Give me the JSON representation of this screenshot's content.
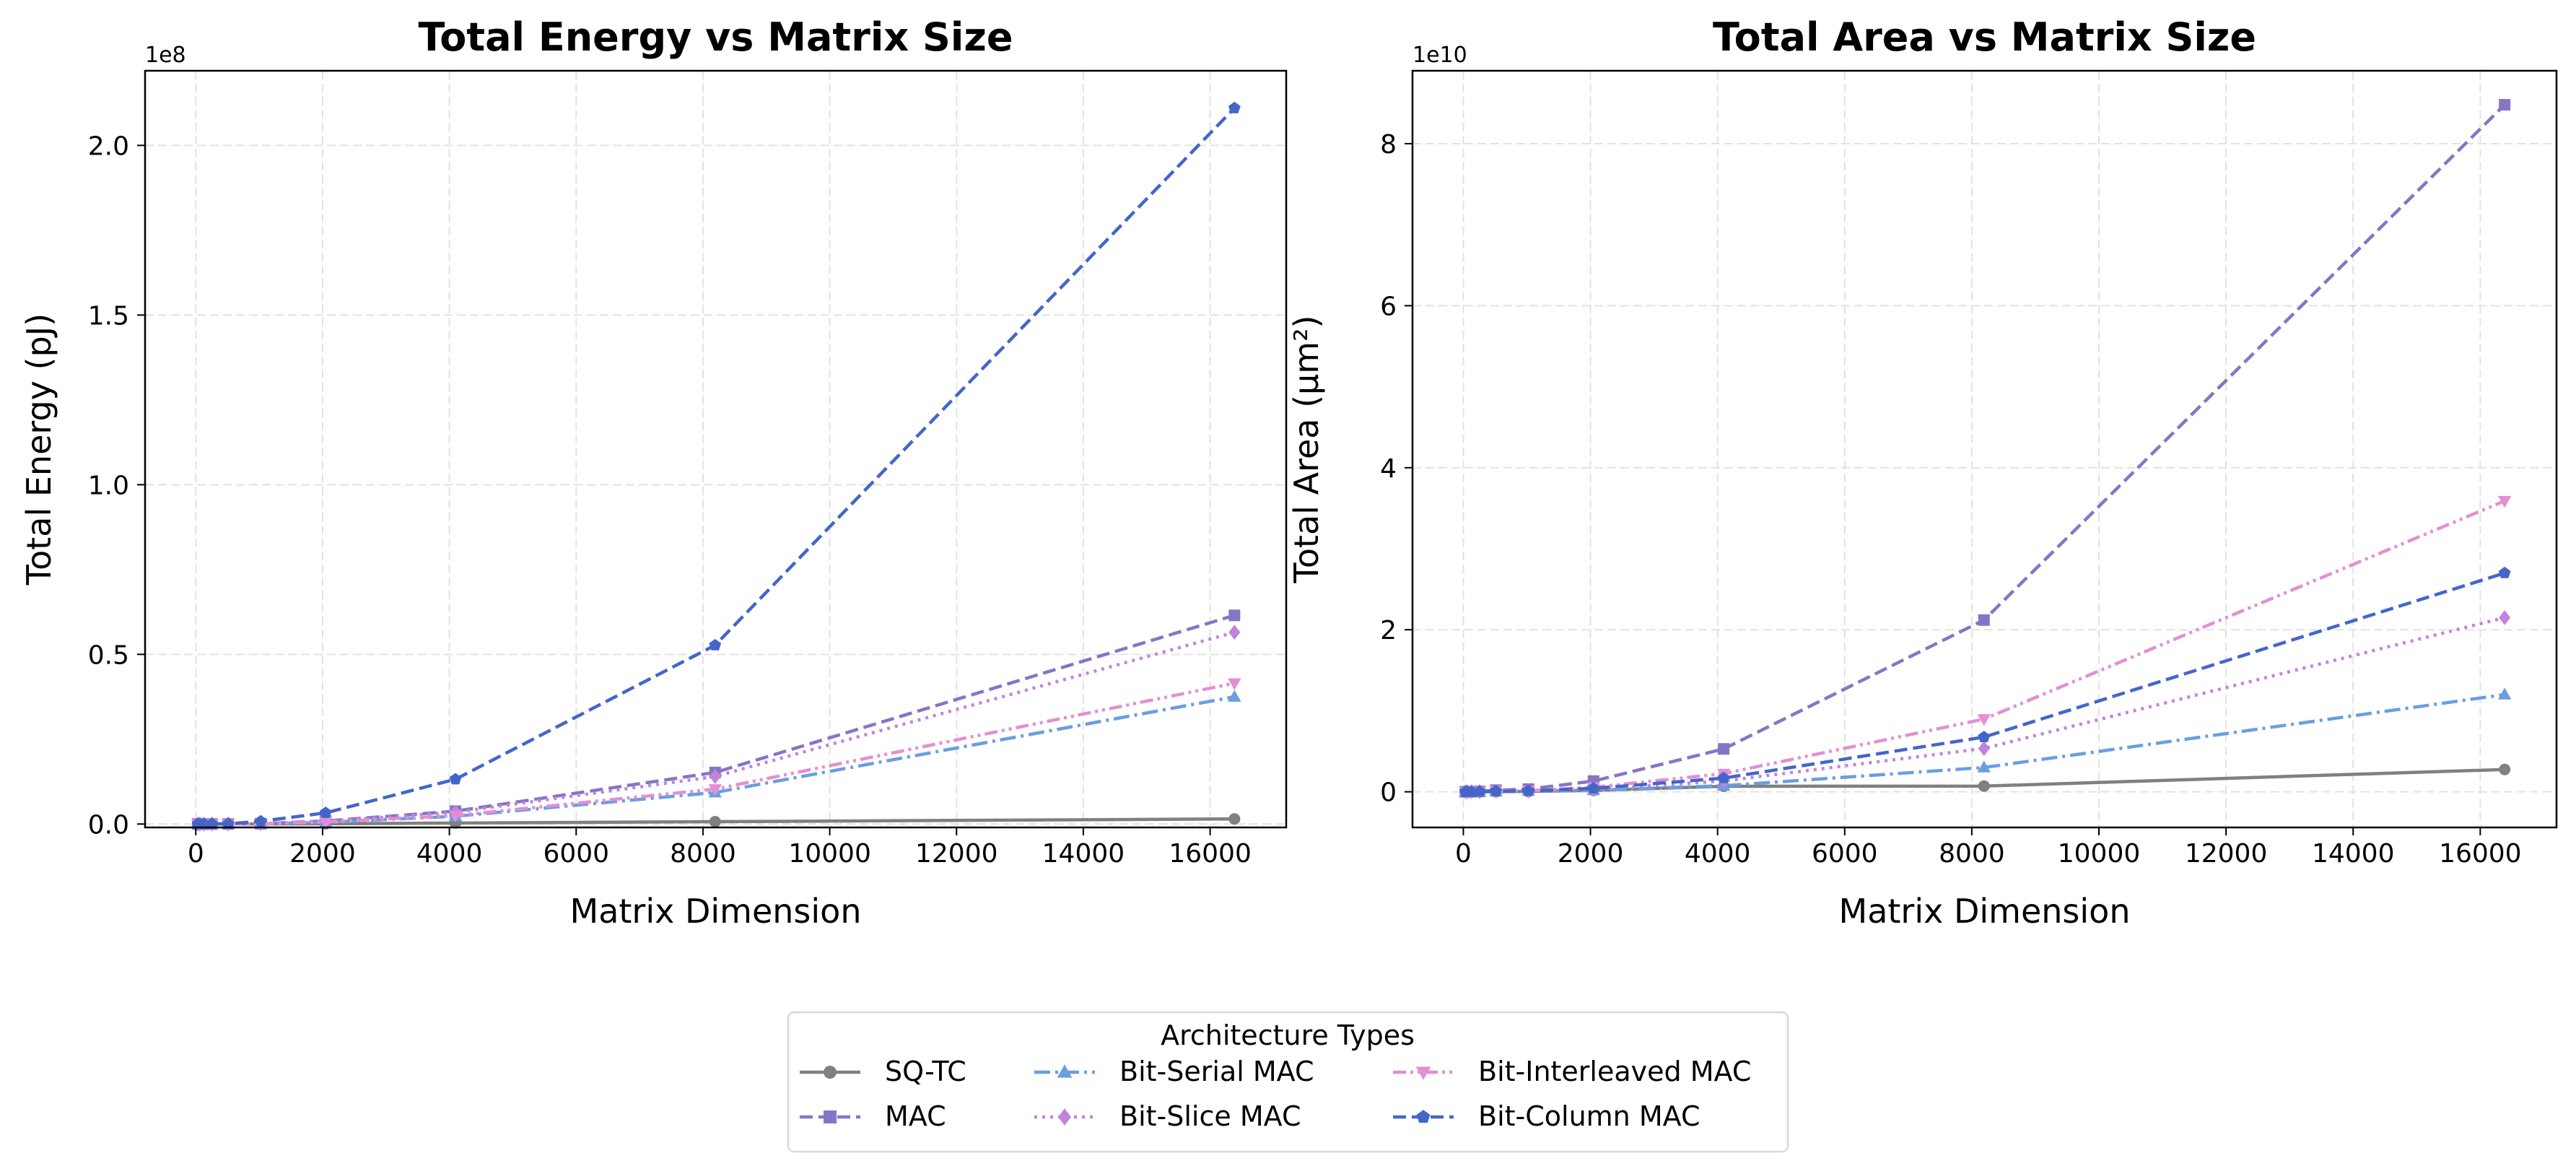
{
  "chart_data": [
    {
      "type": "line",
      "title": "Total Energy vs Matrix Size",
      "xlabel": "Matrix Dimension",
      "ylabel": "Total Energy (pJ)",
      "y_offset_label": "1e8",
      "x": [
        32,
        64,
        128,
        256,
        512,
        1024,
        2048,
        4096,
        8192,
        16384
      ],
      "xlim": [
        -800,
        17200
      ],
      "ylim": [
        -1000000,
        222000000
      ],
      "xticks": [
        0,
        2000,
        4000,
        6000,
        8000,
        10000,
        12000,
        14000,
        16000
      ],
      "xtick_labels": [
        "0",
        "2000",
        "4000",
        "6000",
        "8000",
        "10000",
        "12000",
        "14000",
        "16000"
      ],
      "yticks": [
        0,
        50000000,
        100000000,
        150000000,
        200000000
      ],
      "ytick_labels": [
        "0.0",
        "0.5",
        "1.0",
        "1.5",
        "2.0"
      ],
      "grid": true,
      "series": [
        {
          "name": "SQ-TC",
          "values": [
            0,
            0,
            0,
            1000,
            5000,
            20000,
            80000,
            300000,
            700000,
            1500000
          ]
        },
        {
          "name": "MAC",
          "values": [
            0,
            0,
            1000,
            5000,
            20000,
            100000,
            900000,
            3800000,
            15200000,
            61500000
          ]
        },
        {
          "name": "Bit-Serial MAC",
          "values": [
            0,
            0,
            1000,
            3000,
            10000,
            50000,
            500000,
            2300000,
            9300000,
            37500000
          ]
        },
        {
          "name": "Bit-Slice MAC",
          "values": [
            0,
            0,
            1000,
            4000,
            15000,
            80000,
            800000,
            3500000,
            14000000,
            56500000
          ]
        },
        {
          "name": "Bit-Interleaved MAC",
          "values": [
            0,
            0,
            1000,
            3000,
            10000,
            60000,
            600000,
            2500000,
            10300000,
            41500000
          ]
        },
        {
          "name": "Bit-Column MAC",
          "values": [
            0,
            0,
            5000,
            20000,
            80000,
            800000,
            3300000,
            13200000,
            52700000,
            211000000
          ]
        }
      ]
    },
    {
      "type": "line",
      "title": "Total Area vs Matrix Size",
      "xlabel": "Matrix Dimension",
      "ylabel": "Total Area (μm²)",
      "y_offset_label": "1e10",
      "x": [
        32,
        64,
        128,
        256,
        512,
        1024,
        2048,
        4096,
        8192,
        16384
      ],
      "xlim": [
        -800,
        17200
      ],
      "ylim": [
        -4400000000,
        89000000000
      ],
      "xticks": [
        0,
        2000,
        4000,
        6000,
        8000,
        10000,
        12000,
        14000,
        16000
      ],
      "xtick_labels": [
        "0",
        "2000",
        "4000",
        "6000",
        "8000",
        "10000",
        "12000",
        "14000",
        "16000"
      ],
      "yticks": [
        0,
        20000000000,
        40000000000,
        60000000000,
        80000000000
      ],
      "ytick_labels": [
        "0",
        "2",
        "4",
        "6",
        "8"
      ],
      "grid": true,
      "series": [
        {
          "name": "SQ-TC",
          "values": [
            0,
            0,
            0,
            0,
            10000000,
            40000000,
            170000000,
            680000000,
            700000000,
            2750000000
          ]
        },
        {
          "name": "MAC",
          "values": [
            0,
            0,
            10000000,
            50000000,
            200000000,
            330000000,
            1320000000,
            5290000000,
            21200000000,
            84800000000
          ]
        },
        {
          "name": "Bit-Serial MAC",
          "values": [
            0,
            0,
            0,
            10000000,
            30000000,
            100000000,
            190000000,
            750000000,
            3000000000,
            12000000000
          ]
        },
        {
          "name": "Bit-Slice MAC",
          "values": [
            0,
            0,
            0,
            20000000,
            80000000,
            90000000,
            330000000,
            1330000000,
            5350000000,
            21500000000
          ]
        },
        {
          "name": "Bit-Interleaved MAC",
          "values": [
            0,
            0,
            10000000,
            30000000,
            130000000,
            140000000,
            560000000,
            2240000000,
            8970000000,
            35900000000
          ]
        },
        {
          "name": "Bit-Column MAC",
          "values": [
            0,
            0,
            0,
            20000000,
            70000000,
            110000000,
            420000000,
            1690000000,
            6750000000,
            27000000000
          ]
        }
      ]
    }
  ],
  "legend": {
    "title": "Architecture Types",
    "placement": "bottom-center",
    "entries": [
      "SQ-TC",
      "MAC",
      "Bit-Serial MAC",
      "Bit-Slice MAC",
      "Bit-Interleaved MAC",
      "Bit-Column MAC"
    ]
  },
  "series_style": [
    {
      "name": "SQ-TC",
      "color": "#808080",
      "marker": "circle",
      "dash": "solid"
    },
    {
      "name": "MAC",
      "color": "#8675c6",
      "marker": "square",
      "dash": "dashed"
    },
    {
      "name": "Bit-Serial MAC",
      "color": "#6a9ee0",
      "marker": "triangle-up",
      "dash": "dashdot"
    },
    {
      "name": "Bit-Slice MAC",
      "color": "#c084dc",
      "marker": "diamond",
      "dash": "dotted"
    },
    {
      "name": "Bit-Interleaved MAC",
      "color": "#e38fd3",
      "marker": "triangle-down",
      "dash": "dashdotdot"
    },
    {
      "name": "Bit-Column MAC",
      "color": "#4466c8",
      "marker": "pentagon",
      "dash": "dashed"
    }
  ]
}
